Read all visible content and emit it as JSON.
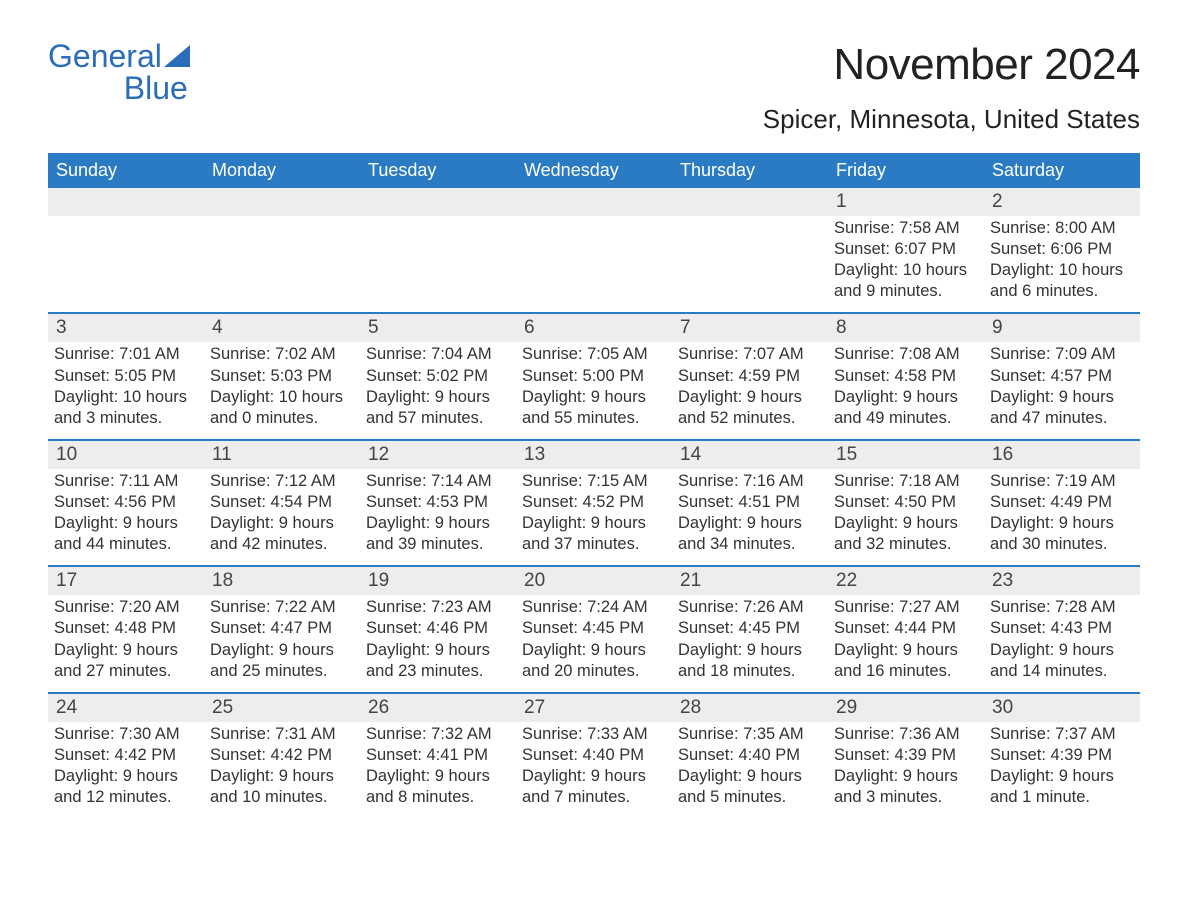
{
  "logo": {
    "word1": "General",
    "word2": "Blue",
    "color": "#2a6db8"
  },
  "title": "November 2024",
  "location": "Spicer, Minnesota, United States",
  "colors": {
    "header_bg": "#2a7bc4",
    "header_text": "#ffffff",
    "row_divider": "#2a7bc4",
    "daynum_bg": "#ededed",
    "body_text": "#333333",
    "page_bg": "#ffffff"
  },
  "weekdays": [
    "Sunday",
    "Monday",
    "Tuesday",
    "Wednesday",
    "Thursday",
    "Friday",
    "Saturday"
  ],
  "weeks": [
    [
      {
        "n": "",
        "sunrise": "",
        "sunset": "",
        "daylight": ""
      },
      {
        "n": "",
        "sunrise": "",
        "sunset": "",
        "daylight": ""
      },
      {
        "n": "",
        "sunrise": "",
        "sunset": "",
        "daylight": ""
      },
      {
        "n": "",
        "sunrise": "",
        "sunset": "",
        "daylight": ""
      },
      {
        "n": "",
        "sunrise": "",
        "sunset": "",
        "daylight": ""
      },
      {
        "n": "1",
        "sunrise": "Sunrise: 7:58 AM",
        "sunset": "Sunset: 6:07 PM",
        "daylight": "Daylight: 10 hours and 9 minutes."
      },
      {
        "n": "2",
        "sunrise": "Sunrise: 8:00 AM",
        "sunset": "Sunset: 6:06 PM",
        "daylight": "Daylight: 10 hours and 6 minutes."
      }
    ],
    [
      {
        "n": "3",
        "sunrise": "Sunrise: 7:01 AM",
        "sunset": "Sunset: 5:05 PM",
        "daylight": "Daylight: 10 hours and 3 minutes."
      },
      {
        "n": "4",
        "sunrise": "Sunrise: 7:02 AM",
        "sunset": "Sunset: 5:03 PM",
        "daylight": "Daylight: 10 hours and 0 minutes."
      },
      {
        "n": "5",
        "sunrise": "Sunrise: 7:04 AM",
        "sunset": "Sunset: 5:02 PM",
        "daylight": "Daylight: 9 hours and 57 minutes."
      },
      {
        "n": "6",
        "sunrise": "Sunrise: 7:05 AM",
        "sunset": "Sunset: 5:00 PM",
        "daylight": "Daylight: 9 hours and 55 minutes."
      },
      {
        "n": "7",
        "sunrise": "Sunrise: 7:07 AM",
        "sunset": "Sunset: 4:59 PM",
        "daylight": "Daylight: 9 hours and 52 minutes."
      },
      {
        "n": "8",
        "sunrise": "Sunrise: 7:08 AM",
        "sunset": "Sunset: 4:58 PM",
        "daylight": "Daylight: 9 hours and 49 minutes."
      },
      {
        "n": "9",
        "sunrise": "Sunrise: 7:09 AM",
        "sunset": "Sunset: 4:57 PM",
        "daylight": "Daylight: 9 hours and 47 minutes."
      }
    ],
    [
      {
        "n": "10",
        "sunrise": "Sunrise: 7:11 AM",
        "sunset": "Sunset: 4:56 PM",
        "daylight": "Daylight: 9 hours and 44 minutes."
      },
      {
        "n": "11",
        "sunrise": "Sunrise: 7:12 AM",
        "sunset": "Sunset: 4:54 PM",
        "daylight": "Daylight: 9 hours and 42 minutes."
      },
      {
        "n": "12",
        "sunrise": "Sunrise: 7:14 AM",
        "sunset": "Sunset: 4:53 PM",
        "daylight": "Daylight: 9 hours and 39 minutes."
      },
      {
        "n": "13",
        "sunrise": "Sunrise: 7:15 AM",
        "sunset": "Sunset: 4:52 PM",
        "daylight": "Daylight: 9 hours and 37 minutes."
      },
      {
        "n": "14",
        "sunrise": "Sunrise: 7:16 AM",
        "sunset": "Sunset: 4:51 PM",
        "daylight": "Daylight: 9 hours and 34 minutes."
      },
      {
        "n": "15",
        "sunrise": "Sunrise: 7:18 AM",
        "sunset": "Sunset: 4:50 PM",
        "daylight": "Daylight: 9 hours and 32 minutes."
      },
      {
        "n": "16",
        "sunrise": "Sunrise: 7:19 AM",
        "sunset": "Sunset: 4:49 PM",
        "daylight": "Daylight: 9 hours and 30 minutes."
      }
    ],
    [
      {
        "n": "17",
        "sunrise": "Sunrise: 7:20 AM",
        "sunset": "Sunset: 4:48 PM",
        "daylight": "Daylight: 9 hours and 27 minutes."
      },
      {
        "n": "18",
        "sunrise": "Sunrise: 7:22 AM",
        "sunset": "Sunset: 4:47 PM",
        "daylight": "Daylight: 9 hours and 25 minutes."
      },
      {
        "n": "19",
        "sunrise": "Sunrise: 7:23 AM",
        "sunset": "Sunset: 4:46 PM",
        "daylight": "Daylight: 9 hours and 23 minutes."
      },
      {
        "n": "20",
        "sunrise": "Sunrise: 7:24 AM",
        "sunset": "Sunset: 4:45 PM",
        "daylight": "Daylight: 9 hours and 20 minutes."
      },
      {
        "n": "21",
        "sunrise": "Sunrise: 7:26 AM",
        "sunset": "Sunset: 4:45 PM",
        "daylight": "Daylight: 9 hours and 18 minutes."
      },
      {
        "n": "22",
        "sunrise": "Sunrise: 7:27 AM",
        "sunset": "Sunset: 4:44 PM",
        "daylight": "Daylight: 9 hours and 16 minutes."
      },
      {
        "n": "23",
        "sunrise": "Sunrise: 7:28 AM",
        "sunset": "Sunset: 4:43 PM",
        "daylight": "Daylight: 9 hours and 14 minutes."
      }
    ],
    [
      {
        "n": "24",
        "sunrise": "Sunrise: 7:30 AM",
        "sunset": "Sunset: 4:42 PM",
        "daylight": "Daylight: 9 hours and 12 minutes."
      },
      {
        "n": "25",
        "sunrise": "Sunrise: 7:31 AM",
        "sunset": "Sunset: 4:42 PM",
        "daylight": "Daylight: 9 hours and 10 minutes."
      },
      {
        "n": "26",
        "sunrise": "Sunrise: 7:32 AM",
        "sunset": "Sunset: 4:41 PM",
        "daylight": "Daylight: 9 hours and 8 minutes."
      },
      {
        "n": "27",
        "sunrise": "Sunrise: 7:33 AM",
        "sunset": "Sunset: 4:40 PM",
        "daylight": "Daylight: 9 hours and 7 minutes."
      },
      {
        "n": "28",
        "sunrise": "Sunrise: 7:35 AM",
        "sunset": "Sunset: 4:40 PM",
        "daylight": "Daylight: 9 hours and 5 minutes."
      },
      {
        "n": "29",
        "sunrise": "Sunrise: 7:36 AM",
        "sunset": "Sunset: 4:39 PM",
        "daylight": "Daylight: 9 hours and 3 minutes."
      },
      {
        "n": "30",
        "sunrise": "Sunrise: 7:37 AM",
        "sunset": "Sunset: 4:39 PM",
        "daylight": "Daylight: 9 hours and 1 minute."
      }
    ]
  ]
}
